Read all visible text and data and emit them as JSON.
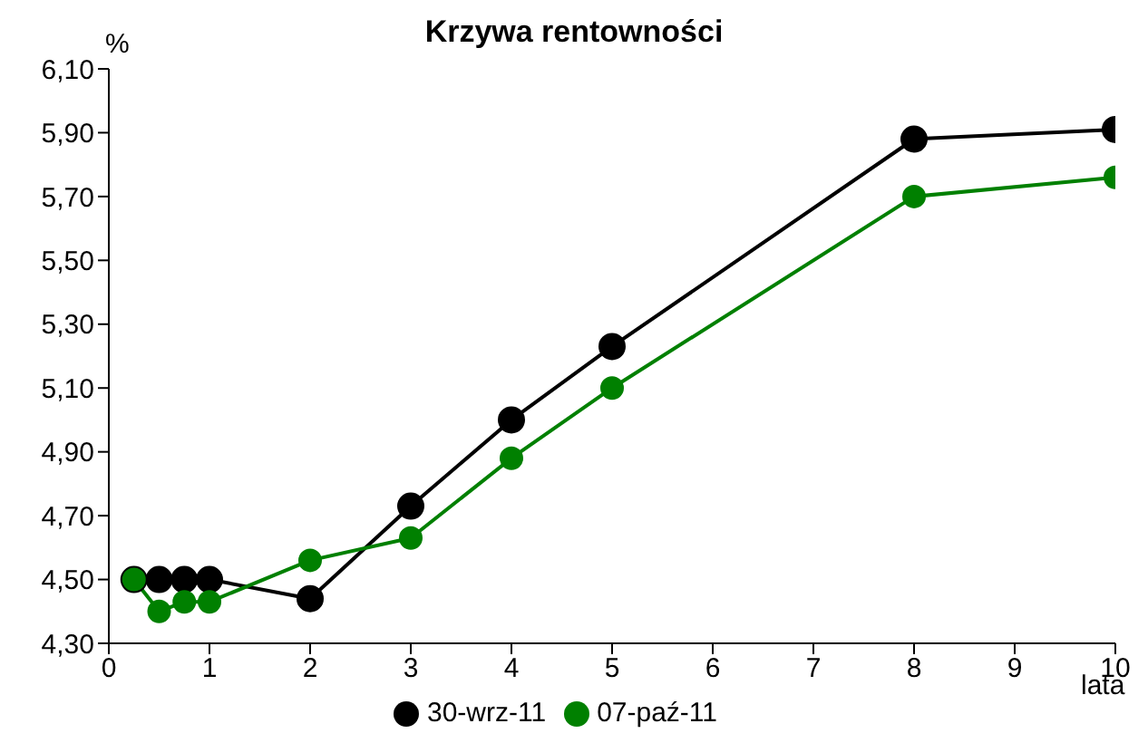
{
  "chart_data": {
    "type": "line",
    "title": "Krzywa rentowności",
    "ylabel": "%",
    "xlabel": "lata",
    "x": [
      0.25,
      0.5,
      0.75,
      1,
      2,
      3,
      4,
      5,
      8,
      10
    ],
    "series": [
      {
        "name": "30-wrz-11",
        "color": "#000000",
        "values": [
          4.5,
          4.5,
          4.5,
          4.5,
          4.44,
          4.73,
          5.0,
          5.23,
          5.88,
          5.91
        ]
      },
      {
        "name": "07-paź-11",
        "color": "#008000",
        "values": [
          4.5,
          4.4,
          4.43,
          4.43,
          4.56,
          4.63,
          4.88,
          5.1,
          5.7,
          5.76
        ]
      }
    ],
    "xlim": [
      0,
      10
    ],
    "xticks": [
      0,
      1,
      2,
      3,
      4,
      5,
      6,
      7,
      8,
      9,
      10
    ],
    "ylim": [
      4.3,
      6.1
    ],
    "yticks": [
      {
        "value": 4.3,
        "label": "4,30"
      },
      {
        "value": 4.5,
        "label": "4,50"
      },
      {
        "value": 4.7,
        "label": "4,70"
      },
      {
        "value": 4.9,
        "label": "4,90"
      },
      {
        "value": 5.1,
        "label": "5,10"
      },
      {
        "value": 5.3,
        "label": "5,30"
      },
      {
        "value": 5.5,
        "label": "5,50"
      },
      {
        "value": 5.7,
        "label": "5,70"
      },
      {
        "value": 5.9,
        "label": "5,90"
      },
      {
        "value": 6.1,
        "label": "6,10"
      }
    ],
    "grid": false,
    "legend": "bottom",
    "marker": "circle",
    "line_style": "solid"
  }
}
